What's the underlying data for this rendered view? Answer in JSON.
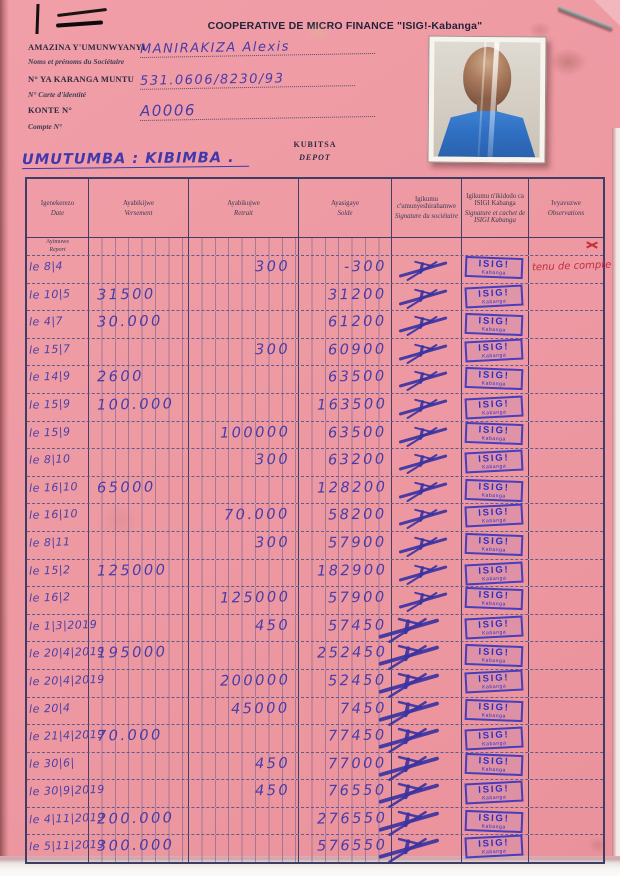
{
  "header": {
    "title": "COOPERATIVE DE MICRO FINANCE \"ISIG!-Kabanga\"",
    "fields": [
      {
        "label_rn": "AMAZINA Y'UMUNWYANYI",
        "label_fr": "Noms et prénoms du Sociétaire",
        "value": "MANIRAKIZA Alexis"
      },
      {
        "label_rn": "N° YA KARANGA MUNTU",
        "label_fr": "N° Carte d'identité",
        "value": "531.0606/8230/93"
      },
      {
        "label_rn": "KONTE N°",
        "label_fr": "Compte N°",
        "value": "A0006"
      }
    ],
    "section_rn": "KUBITSA",
    "section_fr": "DEPOT",
    "commune_note": "UMUTUMBA : KIBIMBA ."
  },
  "table": {
    "columns": [
      {
        "rn": "Igenekerezo",
        "fr": "Date"
      },
      {
        "rn": "Ayabikijwe",
        "fr": "Versement"
      },
      {
        "rn": "Ayabikujwe",
        "fr": "Retrait"
      },
      {
        "rn": "Ayasigaye",
        "fr": "Solde"
      },
      {
        "rn": "Igikumu c'umunyeshirahamwe",
        "fr": "Signature du sociétaire"
      },
      {
        "rn": "Igikumu n'ikidodo ca ISIGI Kabanga",
        "fr": "Signature et cachet de ISIGI Kabanga"
      },
      {
        "rn": "Ivyavuzwe",
        "fr": "Observations"
      }
    ],
    "carryover": {
      "rn": "Ayimuwe",
      "fr": "Report"
    },
    "stamp": {
      "line1": "ISIG!",
      "line2": "Kabanga"
    },
    "rows": [
      {
        "date": "le 8|4",
        "versement": "",
        "retrait": "300",
        "solde": "-300",
        "observation": "tenu de compte"
      },
      {
        "date": "le 10|5",
        "versement": "31500",
        "retrait": "",
        "solde": "31200",
        "observation": ""
      },
      {
        "date": "le 4|7",
        "versement": "30.000",
        "retrait": "",
        "solde": "61200",
        "observation": ""
      },
      {
        "date": "le 15|7",
        "versement": "",
        "retrait": "300",
        "solde": "60900",
        "observation": ""
      },
      {
        "date": "le 14|9",
        "versement": "2600",
        "retrait": "",
        "solde": "63500",
        "observation": ""
      },
      {
        "date": "le 15|9",
        "versement": "100.000",
        "retrait": "",
        "solde": "163500",
        "observation": ""
      },
      {
        "date": "le 15|9",
        "versement": "",
        "retrait": "100000",
        "solde": "63500",
        "observation": ""
      },
      {
        "date": "le 8|10",
        "versement": "",
        "retrait": "300",
        "solde": "63200",
        "observation": ""
      },
      {
        "date": "le 16|10",
        "versement": "65000",
        "retrait": "",
        "solde": "128200",
        "observation": ""
      },
      {
        "date": "le 16|10",
        "versement": "",
        "retrait": "70.000",
        "solde": "58200",
        "observation": ""
      },
      {
        "date": "le 8|11",
        "versement": "",
        "retrait": "300",
        "solde": "57900",
        "observation": ""
      },
      {
        "date": "le 15|2",
        "versement": "125000",
        "retrait": "",
        "solde": "182900",
        "observation": ""
      },
      {
        "date": "le 16|2",
        "versement": "",
        "retrait": "125000",
        "solde": "57900",
        "observation": ""
      },
      {
        "date": "le 1|3|2019",
        "versement": "",
        "retrait": "450",
        "solde": "57450",
        "observation": ""
      },
      {
        "date": "le 20|4|2019",
        "versement": "195000",
        "retrait": "",
        "solde": "252450",
        "observation": ""
      },
      {
        "date": "le 20|4|2019",
        "versement": "",
        "retrait": "200000",
        "solde": "52450",
        "observation": ""
      },
      {
        "date": "le 20|4",
        "versement": "",
        "retrait": "45000",
        "solde": "7450",
        "observation": ""
      },
      {
        "date": "le 21|4|2019",
        "versement": "70.000",
        "retrait": "",
        "solde": "77450",
        "observation": ""
      },
      {
        "date": "le 30|6|",
        "versement": "",
        "retrait": "450",
        "solde": "77000",
        "observation": ""
      },
      {
        "date": "le 30|9|2019",
        "versement": "",
        "retrait": "450",
        "solde": "76550",
        "observation": ""
      },
      {
        "date": "le 4|11|2019",
        "versement": "200.000",
        "retrait": "",
        "solde": "276550",
        "observation": ""
      },
      {
        "date": "le 5|11|2019",
        "versement": "300.000",
        "retrait": "",
        "solde": "576550",
        "observation": ""
      }
    ]
  },
  "colors": {
    "page_pink": "#ee9aa3",
    "ink_blue": "#473caa",
    "stamp_blue": "#2d2fc4",
    "note_red": "#c22b38"
  }
}
